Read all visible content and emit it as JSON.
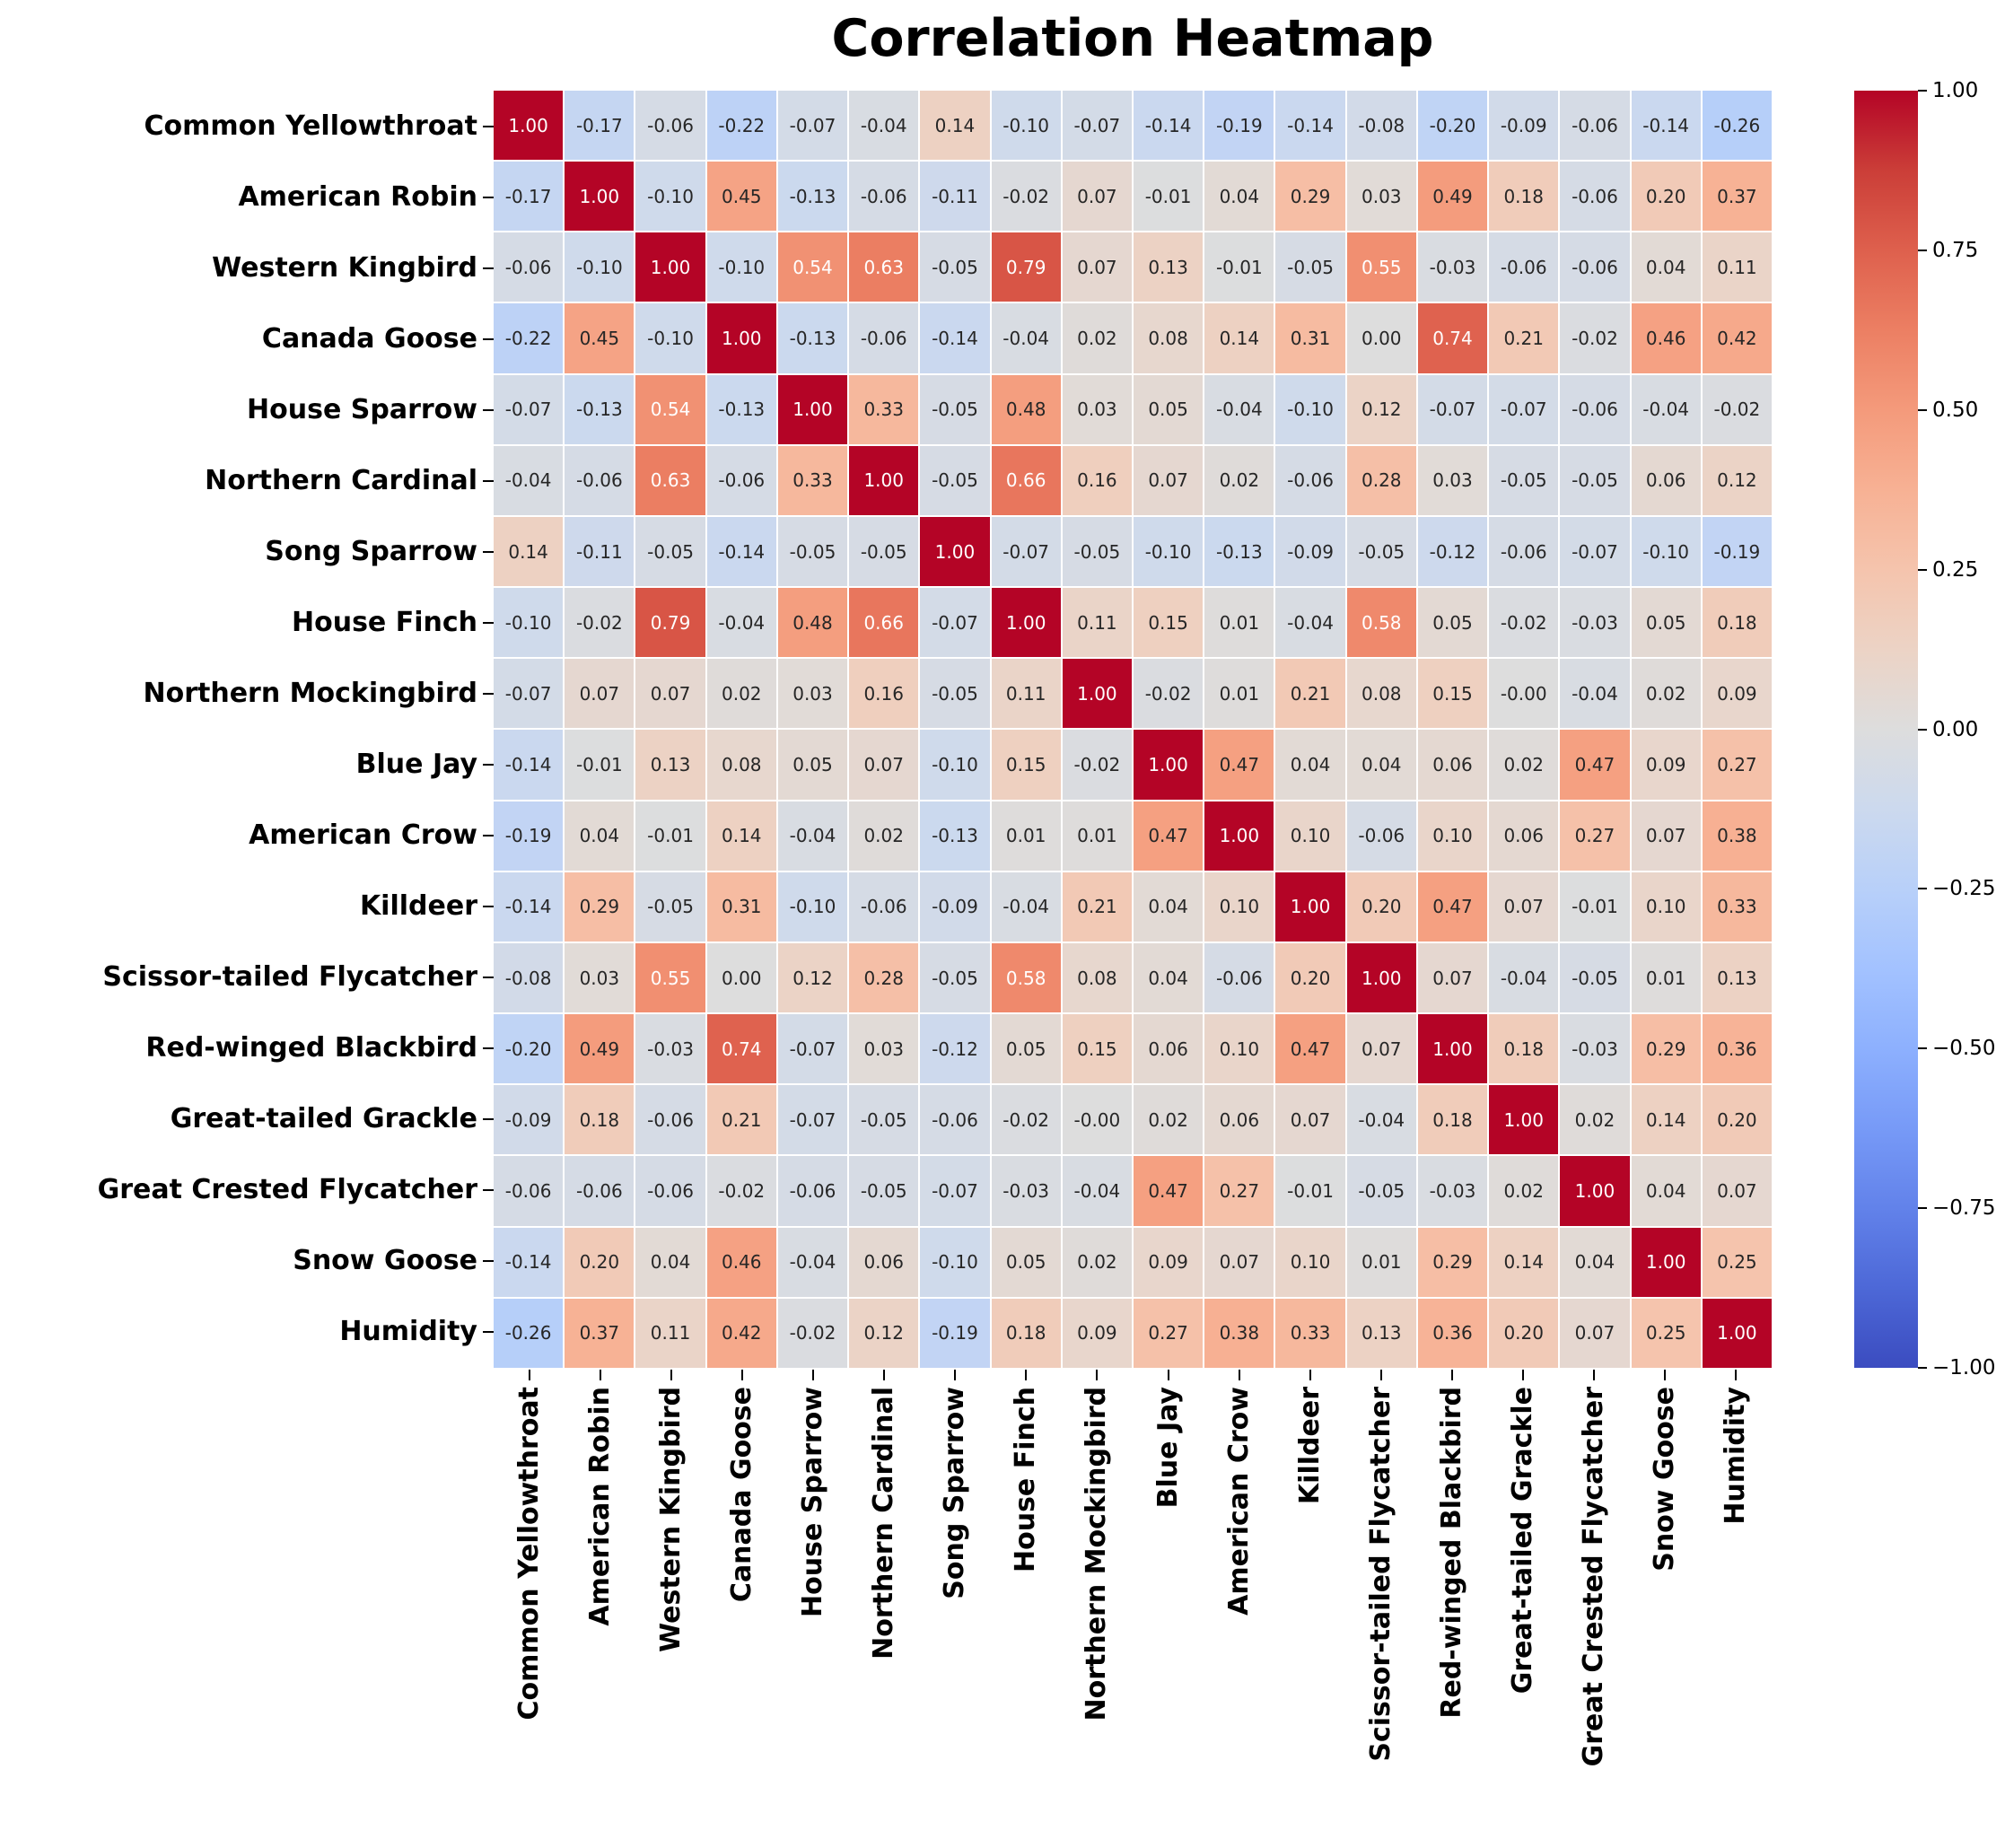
{
  "title": "Correlation Heatmap",
  "colors": {
    "background": "#ffffff",
    "grid_line": "#ffffff",
    "label_text": "#000000",
    "annot_dark": "#262626",
    "annot_light": "#ffffff",
    "diagonal_red": "#b40426",
    "mid_gray": "#dddddd",
    "deep_blue": "#3b4cc0"
  },
  "chart_data": {
    "type": "heatmap",
    "title": "Correlation Heatmap",
    "labels": [
      "Common Yellowthroat",
      "American Robin",
      "Western Kingbird",
      "Canada Goose",
      "House Sparrow",
      "Northern Cardinal",
      "Song Sparrow",
      "House Finch",
      "Northern Mockingbird",
      "Blue Jay",
      "American Crow",
      "Killdeer",
      "Scissor-tailed Flycatcher",
      "Red-winged Blackbird",
      "Great-tailed Grackle",
      "Great Crested Flycatcher",
      "Snow Goose",
      "Humidity"
    ],
    "matrix": [
      [
        "1.00",
        "-0.17",
        "-0.06",
        "-0.22",
        "-0.07",
        "-0.04",
        "0.14",
        "-0.10",
        "-0.07",
        "-0.14",
        "-0.19",
        "-0.14",
        "-0.08",
        "-0.20",
        "-0.09",
        "-0.06",
        "-0.14",
        "-0.26"
      ],
      [
        "-0.17",
        "1.00",
        "-0.10",
        "0.45",
        "-0.13",
        "-0.06",
        "-0.11",
        "-0.02",
        "0.07",
        "-0.01",
        "0.04",
        "0.29",
        "0.03",
        "0.49",
        "0.18",
        "-0.06",
        "0.20",
        "0.37"
      ],
      [
        "-0.06",
        "-0.10",
        "1.00",
        "-0.10",
        "0.54",
        "0.63",
        "-0.05",
        "0.79",
        "0.07",
        "0.13",
        "-0.01",
        "-0.05",
        "0.55",
        "-0.03",
        "-0.06",
        "-0.06",
        "0.04",
        "0.11"
      ],
      [
        "-0.22",
        "0.45",
        "-0.10",
        "1.00",
        "-0.13",
        "-0.06",
        "-0.14",
        "-0.04",
        "0.02",
        "0.08",
        "0.14",
        "0.31",
        "0.00",
        "0.74",
        "0.21",
        "-0.02",
        "0.46",
        "0.42"
      ],
      [
        "-0.07",
        "-0.13",
        "0.54",
        "-0.13",
        "1.00",
        "0.33",
        "-0.05",
        "0.48",
        "0.03",
        "0.05",
        "-0.04",
        "-0.10",
        "0.12",
        "-0.07",
        "-0.07",
        "-0.06",
        "-0.04",
        "-0.02"
      ],
      [
        "-0.04",
        "-0.06",
        "0.63",
        "-0.06",
        "0.33",
        "1.00",
        "-0.05",
        "0.66",
        "0.16",
        "0.07",
        "0.02",
        "-0.06",
        "0.28",
        "0.03",
        "-0.05",
        "-0.05",
        "0.06",
        "0.12"
      ],
      [
        "0.14",
        "-0.11",
        "-0.05",
        "-0.14",
        "-0.05",
        "-0.05",
        "1.00",
        "-0.07",
        "-0.05",
        "-0.10",
        "-0.13",
        "-0.09",
        "-0.05",
        "-0.12",
        "-0.06",
        "-0.07",
        "-0.10",
        "-0.19"
      ],
      [
        "-0.10",
        "-0.02",
        "0.79",
        "-0.04",
        "0.48",
        "0.66",
        "-0.07",
        "1.00",
        "0.11",
        "0.15",
        "0.01",
        "-0.04",
        "0.58",
        "0.05",
        "-0.02",
        "-0.03",
        "0.05",
        "0.18"
      ],
      [
        "-0.07",
        "0.07",
        "0.07",
        "0.02",
        "0.03",
        "0.16",
        "-0.05",
        "0.11",
        "1.00",
        "-0.02",
        "0.01",
        "0.21",
        "0.08",
        "0.15",
        "-0.00",
        "-0.04",
        "0.02",
        "0.09"
      ],
      [
        "-0.14",
        "-0.01",
        "0.13",
        "0.08",
        "0.05",
        "0.07",
        "-0.10",
        "0.15",
        "-0.02",
        "1.00",
        "0.47",
        "0.04",
        "0.04",
        "0.06",
        "0.02",
        "0.47",
        "0.09",
        "0.27"
      ],
      [
        "-0.19",
        "0.04",
        "-0.01",
        "0.14",
        "-0.04",
        "0.02",
        "-0.13",
        "0.01",
        "0.01",
        "0.47",
        "1.00",
        "0.10",
        "-0.06",
        "0.10",
        "0.06",
        "0.27",
        "0.07",
        "0.38"
      ],
      [
        "-0.14",
        "0.29",
        "-0.05",
        "0.31",
        "-0.10",
        "-0.06",
        "-0.09",
        "-0.04",
        "0.21",
        "0.04",
        "0.10",
        "1.00",
        "0.20",
        "0.47",
        "0.07",
        "-0.01",
        "0.10",
        "0.33"
      ],
      [
        "-0.08",
        "0.03",
        "0.55",
        "0.00",
        "0.12",
        "0.28",
        "-0.05",
        "0.58",
        "0.08",
        "0.04",
        "-0.06",
        "0.20",
        "1.00",
        "0.07",
        "-0.04",
        "-0.05",
        "0.01",
        "0.13"
      ],
      [
        "-0.20",
        "0.49",
        "-0.03",
        "0.74",
        "-0.07",
        "0.03",
        "-0.12",
        "0.05",
        "0.15",
        "0.06",
        "0.10",
        "0.47",
        "0.07",
        "1.00",
        "0.18",
        "-0.03",
        "0.29",
        "0.36"
      ],
      [
        "-0.09",
        "0.18",
        "-0.06",
        "0.21",
        "-0.07",
        "-0.05",
        "-0.06",
        "-0.02",
        "-0.00",
        "0.02",
        "0.06",
        "0.07",
        "-0.04",
        "0.18",
        "1.00",
        "0.02",
        "0.14",
        "0.20"
      ],
      [
        "-0.06",
        "-0.06",
        "-0.06",
        "-0.02",
        "-0.06",
        "-0.05",
        "-0.07",
        "-0.03",
        "-0.04",
        "0.47",
        "0.27",
        "-0.01",
        "-0.05",
        "-0.03",
        "0.02",
        "1.00",
        "0.04",
        "0.07"
      ],
      [
        "-0.14",
        "0.20",
        "0.04",
        "0.46",
        "-0.04",
        "0.06",
        "-0.10",
        "0.05",
        "0.02",
        "0.09",
        "0.07",
        "0.10",
        "0.01",
        "0.29",
        "0.14",
        "0.04",
        "1.00",
        "0.25"
      ],
      [
        "-0.26",
        "0.37",
        "0.11",
        "0.42",
        "-0.02",
        "0.12",
        "-0.19",
        "0.18",
        "0.09",
        "0.27",
        "0.38",
        "0.33",
        "0.13",
        "0.36",
        "0.20",
        "0.07",
        "0.25",
        "1.00"
      ]
    ],
    "value_range": [
      -1,
      1
    ],
    "grid": false,
    "legend_position": "right-colorbar",
    "colormap": {
      "name": "coolwarm",
      "stops": [
        [
          0.0,
          "#3b4cc0"
        ],
        [
          0.0625,
          "#4d68d7"
        ],
        [
          0.125,
          "#6282ea"
        ],
        [
          0.1875,
          "#779af7"
        ],
        [
          0.25,
          "#8db0fe"
        ],
        [
          0.3125,
          "#a3c2ff"
        ],
        [
          0.375,
          "#b8d0f9"
        ],
        [
          0.4375,
          "#ccd9ee"
        ],
        [
          0.5,
          "#dddddd"
        ],
        [
          0.5625,
          "#ecd3c5"
        ],
        [
          0.625,
          "#f5c4ad"
        ],
        [
          0.6875,
          "#f7b194"
        ],
        [
          0.75,
          "#f49a7b"
        ],
        [
          0.8125,
          "#ec7f63"
        ],
        [
          0.875,
          "#de604d"
        ],
        [
          0.9375,
          "#cb3e38"
        ],
        [
          1.0,
          "#b40426"
        ]
      ]
    },
    "colorbar_ticks": [
      {
        "label": "1.00",
        "value": 1
      },
      {
        "label": "0.75",
        "value": 0.75
      },
      {
        "label": "0.50",
        "value": 0.5
      },
      {
        "label": "0.25",
        "value": 0.25
      },
      {
        "label": "0.00",
        "value": 0
      },
      {
        "label": "−0.25",
        "value": -0.25
      },
      {
        "label": "−0.50",
        "value": -0.5
      },
      {
        "label": "−0.75",
        "value": -0.75
      },
      {
        "label": "−1.00",
        "value": -1
      }
    ],
    "white_text_threshold": 0.5
  }
}
